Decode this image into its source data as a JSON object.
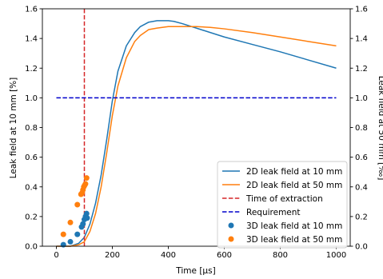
{
  "chart_data": {
    "type": "line",
    "xlabel": "Time [μs]",
    "ylabel_left": "Leak field at 10 mm [%]",
    "ylabel_right": "Leak field at 50 mm [‰]",
    "xlim": [
      -50,
      1050
    ],
    "ylim": [
      0,
      1.6
    ],
    "xticks": [
      0,
      200,
      400,
      600,
      800,
      1000
    ],
    "yticks": [
      0.0,
      0.2,
      0.4,
      0.6,
      0.8,
      1.0,
      1.2,
      1.4,
      1.6
    ],
    "ytick_labels": [
      "0.0",
      "0.2",
      "0.4",
      "0.6",
      "0.8",
      "1.0",
      "1.2",
      "1.4",
      "1.6"
    ],
    "grid": false,
    "legend_position": "lower-right",
    "colors": {
      "blue": "#1f77b4",
      "orange": "#ff7f0e",
      "red": "#d62728",
      "req": "#0000cc"
    },
    "series": [
      {
        "name": "2D leak field at 10 mm",
        "kind": "line",
        "color": "#1f77b4",
        "x": [
          0,
          50,
          80,
          100,
          120,
          140,
          160,
          180,
          200,
          220,
          250,
          280,
          300,
          330,
          360,
          380,
          400,
          420,
          450,
          500,
          600,
          700,
          800,
          900,
          1000
        ],
        "y": [
          0.0,
          0.0,
          0.02,
          0.06,
          0.15,
          0.29,
          0.48,
          0.72,
          0.98,
          1.18,
          1.35,
          1.44,
          1.48,
          1.51,
          1.52,
          1.52,
          1.52,
          1.515,
          1.5,
          1.47,
          1.41,
          1.36,
          1.31,
          1.255,
          1.2
        ]
      },
      {
        "name": "2D leak field at 50 mm",
        "kind": "line",
        "color": "#ff7f0e",
        "x": [
          0,
          50,
          80,
          100,
          120,
          140,
          160,
          180,
          200,
          220,
          250,
          280,
          300,
          330,
          360,
          400,
          450,
          500,
          550,
          600,
          700,
          800,
          900,
          1000
        ],
        "y": [
          0.0,
          0.0,
          0.01,
          0.03,
          0.1,
          0.22,
          0.4,
          0.63,
          0.88,
          1.08,
          1.27,
          1.38,
          1.42,
          1.46,
          1.47,
          1.48,
          1.48,
          1.48,
          1.475,
          1.465,
          1.44,
          1.41,
          1.38,
          1.35
        ]
      },
      {
        "name": "Time of extraction",
        "kind": "vline",
        "color": "#d62728",
        "x": 100
      },
      {
        "name": "Requirement",
        "kind": "hline",
        "color": "#0000cc",
        "y": 1.0,
        "xrange": [
          0,
          1000
        ]
      },
      {
        "name": "3D leak field at 10 mm",
        "kind": "scatter",
        "color": "#1f77b4",
        "x": [
          25,
          50,
          75,
          90,
          95,
          100,
          104,
          108,
          110
        ],
        "y": [
          0.01,
          0.03,
          0.08,
          0.13,
          0.15,
          0.18,
          0.2,
          0.22,
          0.19
        ]
      },
      {
        "name": "3D leak field at 50 mm",
        "kind": "scatter",
        "color": "#ff7f0e",
        "x": [
          25,
          50,
          75,
          88,
          92,
          95,
          98,
          101,
          104,
          108
        ],
        "y": [
          0.08,
          0.16,
          0.28,
          0.35,
          0.36,
          0.38,
          0.4,
          0.41,
          0.42,
          0.46
        ]
      }
    ]
  }
}
